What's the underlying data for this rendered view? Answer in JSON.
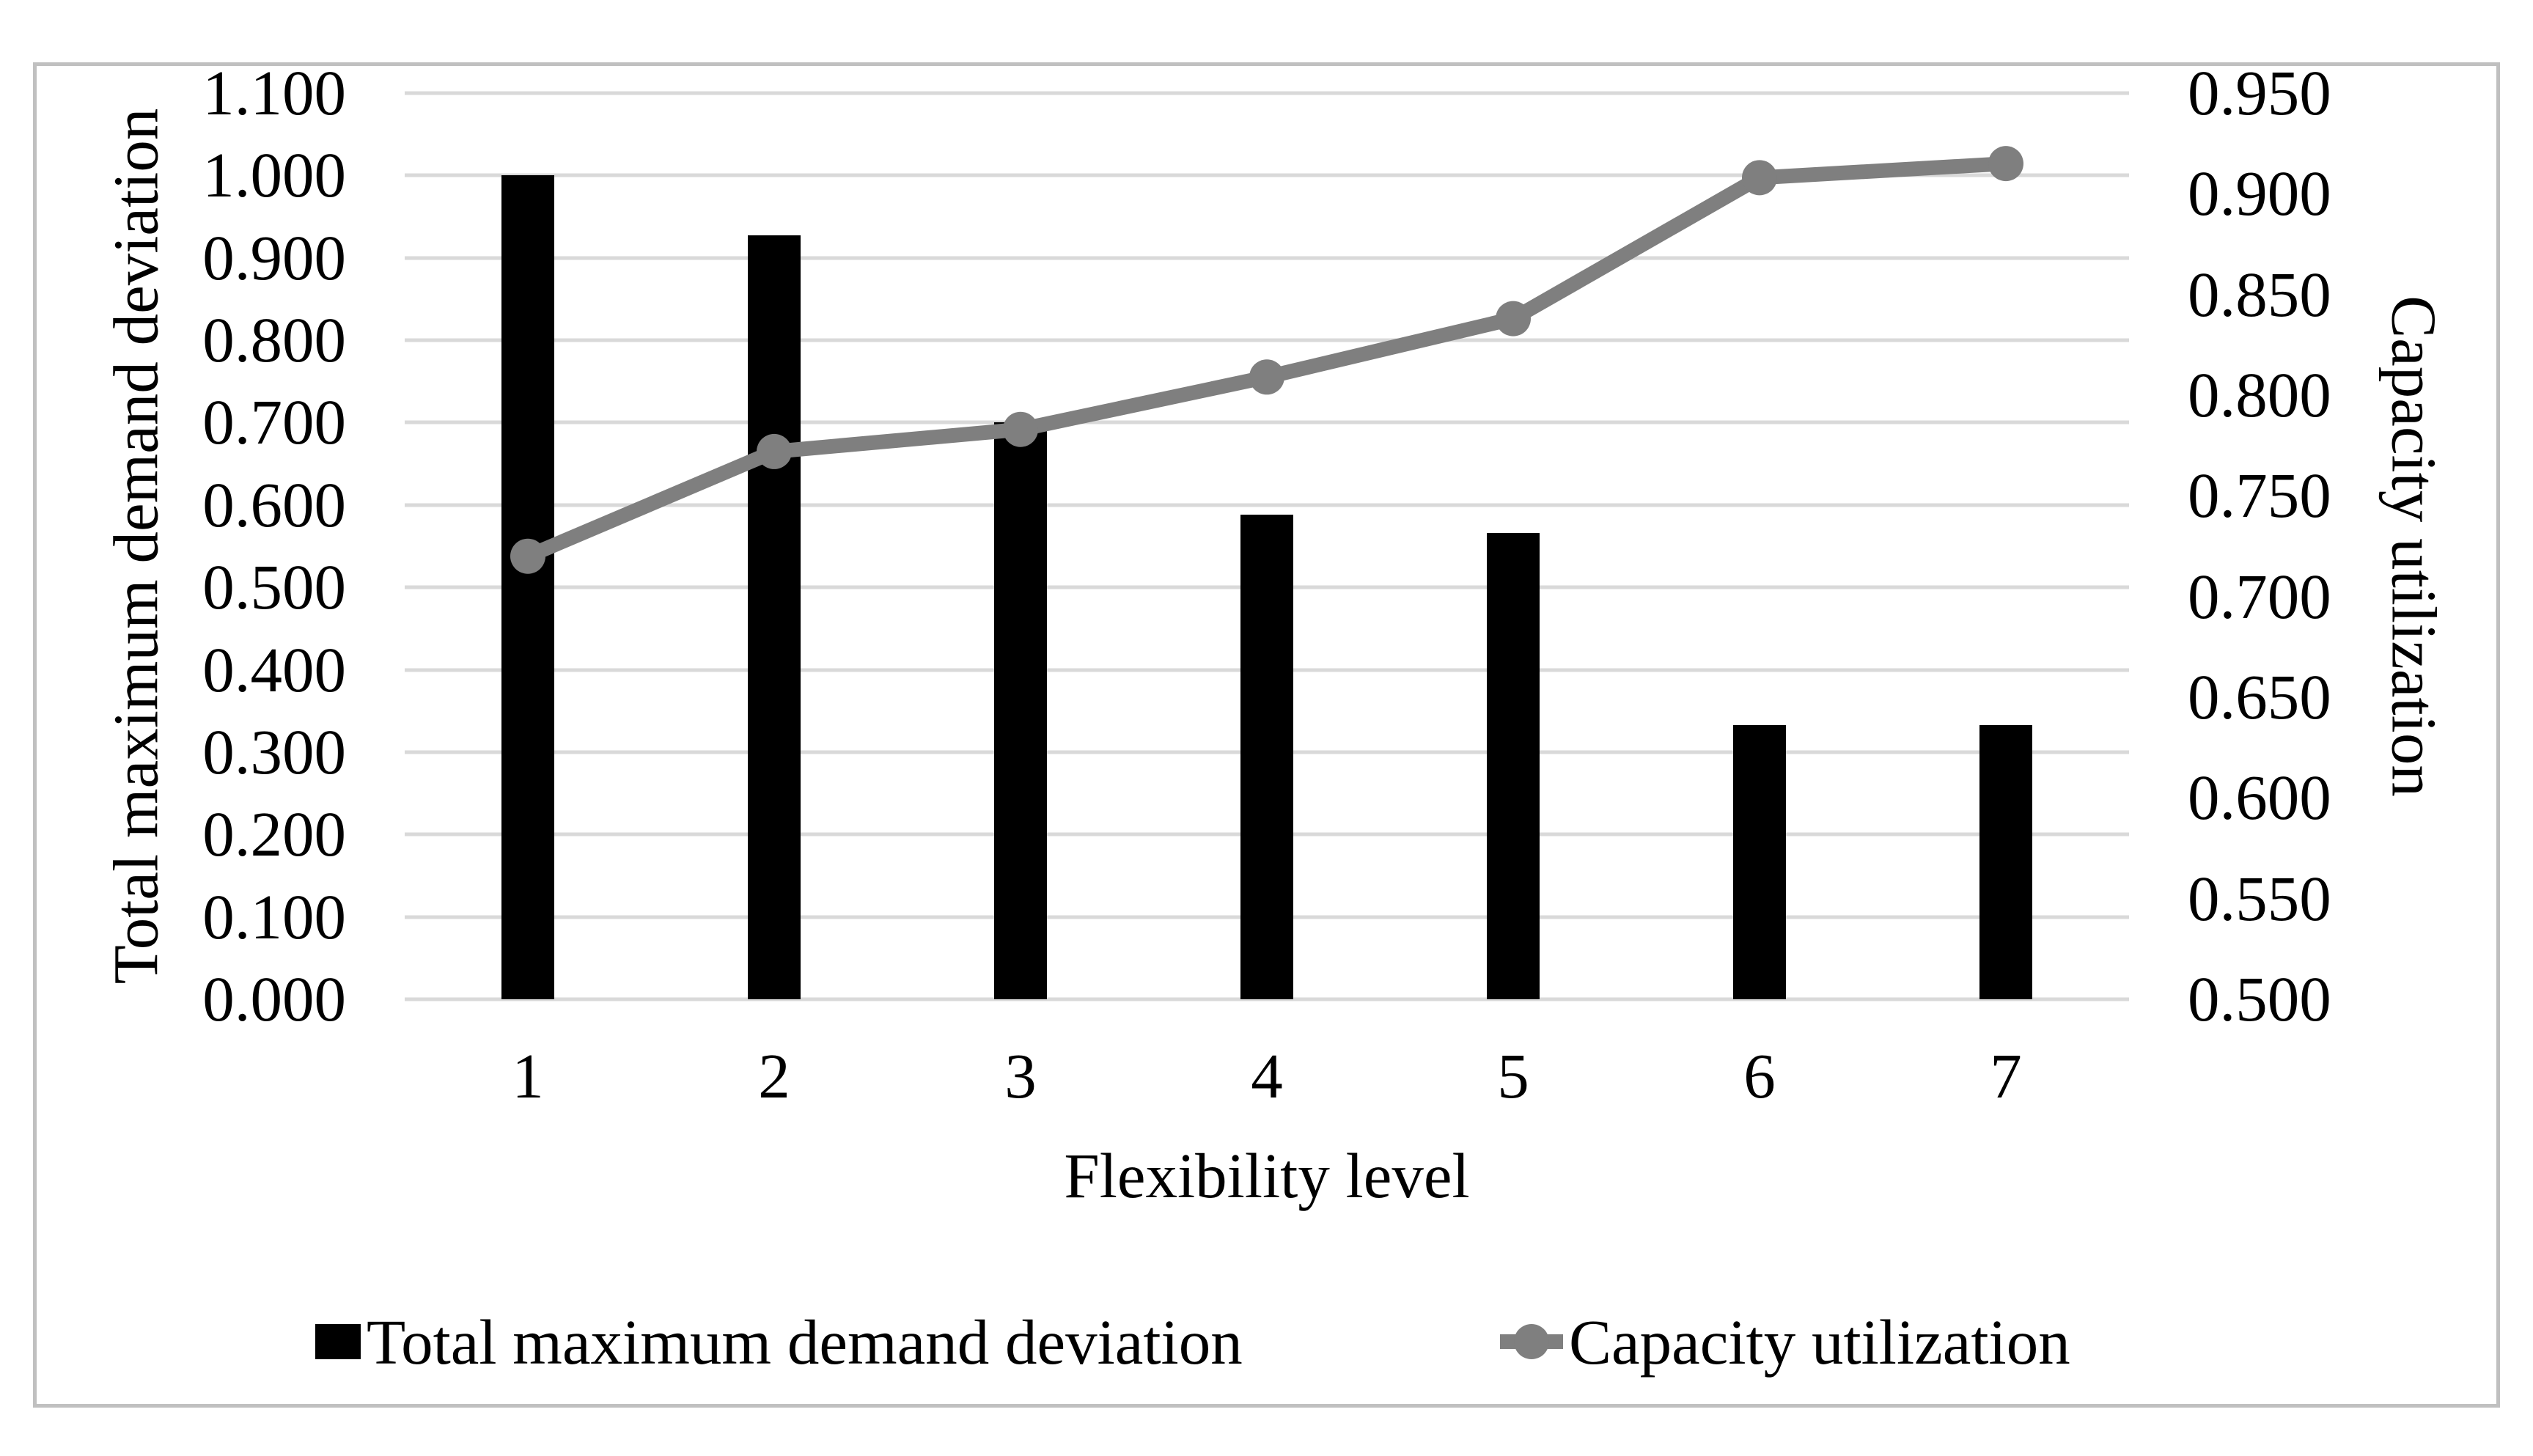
{
  "figure": {
    "background": "#ffffff",
    "border_color": "#c0c0c0",
    "gridline_color": "#d9d9d9",
    "bar_color": "#000000",
    "line_color": "#7f7f7f",
    "text_color": "#000000"
  },
  "chart_data": {
    "type": "bar",
    "subtype": "combo bar+line, dual axis",
    "categories": [
      "1",
      "2",
      "3",
      "4",
      "5",
      "6",
      "7"
    ],
    "series": [
      {
        "name": "Total maximum demand deviation",
        "type": "bar",
        "axis": "left",
        "color": "#000000",
        "values": [
          1.0,
          0.927,
          0.7,
          0.588,
          0.566,
          0.333,
          0.333
        ]
      },
      {
        "name": "Capacity utilization",
        "type": "line",
        "axis": "right",
        "color": "#7f7f7f",
        "values": [
          0.72,
          0.772,
          0.783,
          0.809,
          0.838,
          0.908,
          0.915
        ]
      }
    ],
    "title": "",
    "xlabel": "Flexibility level",
    "ylabel_left": "Total maximum demand deviation",
    "ylabel_right": "Capacity utilization",
    "ylim_left": [
      0.0,
      1.1
    ],
    "ylim_right": [
      0.5,
      0.95
    ],
    "left_ticks": [
      "1.100",
      "1.000",
      "0.900",
      "0.800",
      "0.700",
      "0.600",
      "0.500",
      "0.400",
      "0.300",
      "0.200",
      "0.100",
      "0.000"
    ],
    "right_ticks": [
      "0.950",
      "0.900",
      "0.850",
      "0.800",
      "0.750",
      "0.700",
      "0.650",
      "0.600",
      "0.550",
      "0.500"
    ],
    "grid": "horizontal gridlines on",
    "legend_position": "bottom"
  },
  "legend": {
    "items": [
      {
        "label": "Total maximum demand deviation",
        "swatch": "black-rect"
      },
      {
        "label": "Capacity utilization",
        "swatch": "gray-line-circle-marker"
      }
    ]
  }
}
